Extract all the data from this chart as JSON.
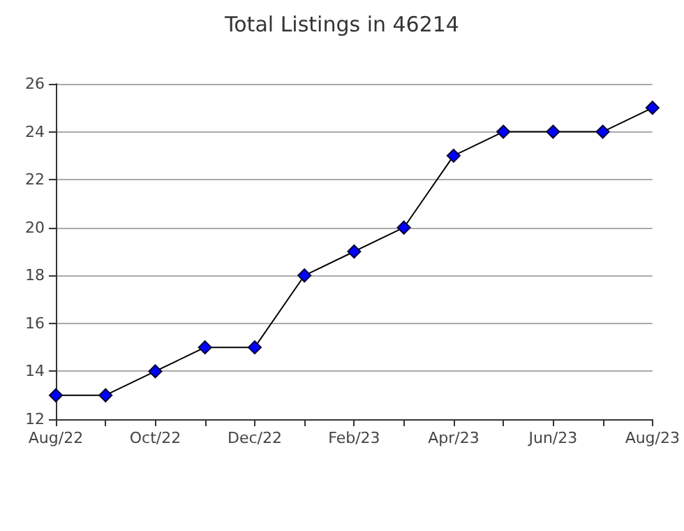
{
  "chart_data": {
    "type": "line",
    "title": "Total Listings in 46214",
    "categories": [
      "Aug/22",
      null,
      "Oct/22",
      null,
      "Dec/22",
      null,
      "Feb/23",
      null,
      "Apr/23",
      null,
      "Jun/23",
      null,
      "Aug/23"
    ],
    "series": [
      {
        "color": "#0000ff",
        "values": [
          13,
          13,
          14,
          15,
          15,
          18,
          19,
          20,
          23,
          24,
          24,
          24,
          25
        ]
      }
    ],
    "ylim": [
      12,
      26
    ],
    "yticks": [
      12,
      14,
      16,
      18,
      20,
      22,
      24,
      26
    ],
    "grid": "y",
    "marker": "diamond",
    "line_style": "solid"
  }
}
